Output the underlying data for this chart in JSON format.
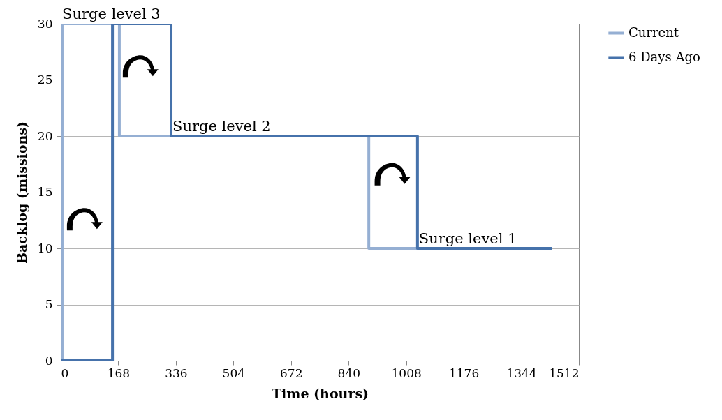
{
  "chart_data": {
    "type": "step",
    "xlabel": "Time (hours)",
    "ylabel": "Backlog (missions)",
    "series": [
      {
        "name": "Current",
        "color": "#95afd3",
        "x": [
          4,
          4,
          171,
          899,
          1433
        ],
        "values": [
          0,
          30,
          20,
          10,
          10
        ]
      },
      {
        "name": "6 Days Ago",
        "color": "#4672ab",
        "x": [
          0,
          151,
          322,
          1041,
          1433
        ],
        "values": [
          0,
          30,
          20,
          10,
          10
        ]
      }
    ],
    "xlim": [
      0,
      1512
    ],
    "xticks": [
      0,
      168,
      336,
      504,
      672,
      840,
      1008,
      1176,
      1344,
      1512
    ],
    "ylim": [
      0,
      30
    ],
    "yticks": [
      0,
      5,
      10,
      15,
      20,
      25,
      30
    ],
    "grid": "y",
    "legend": "right",
    "line_style": "solid",
    "marker": "none",
    "annotations": [
      {
        "text": "Surge level 3",
        "x": 0,
        "y": 30
      },
      {
        "text": "Surge level 2",
        "x": 322,
        "y": 20
      },
      {
        "text": "Surge level 1",
        "x": 1041,
        "y": 10
      }
    ]
  }
}
